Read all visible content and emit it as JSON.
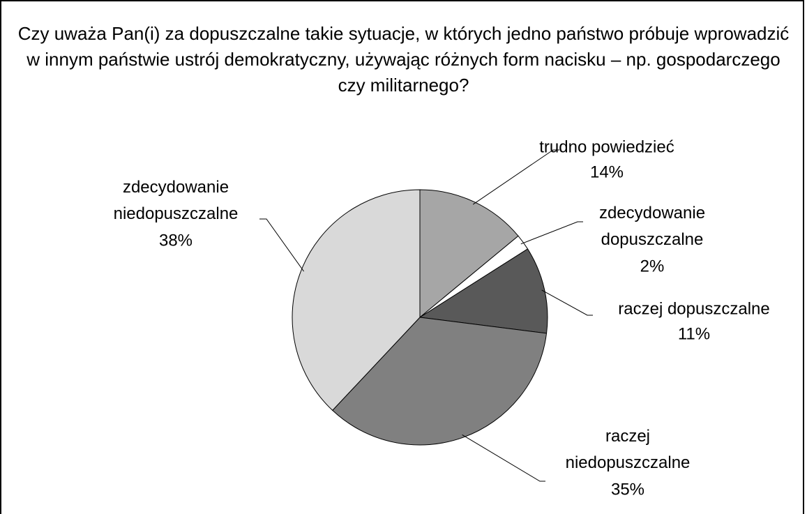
{
  "chart_data": {
    "type": "pie",
    "title": "Czy uważa Pan(i) za dopuszczalne takie sytuacje, w których jedno państwo próbuje wprowadzić w innym państwie ustrój demokratyczny, używając różnych form nacisku – np. gospodarczego czy militarnego?",
    "categories": [
      "trudno powiedzieć",
      "zdecydowanie dopuszczalne",
      "raczej dopuszczalne",
      "raczej niedopuszczalne",
      "zdecydowanie niedopuszczalne"
    ],
    "values": [
      14,
      2,
      11,
      35,
      38
    ],
    "value_labels": [
      "14%",
      "2%",
      "11%",
      "35%",
      "38%"
    ],
    "colors": [
      "#a6a6a6",
      "#ffffff",
      "#595959",
      "#808080",
      "#d9d9d9"
    ]
  }
}
